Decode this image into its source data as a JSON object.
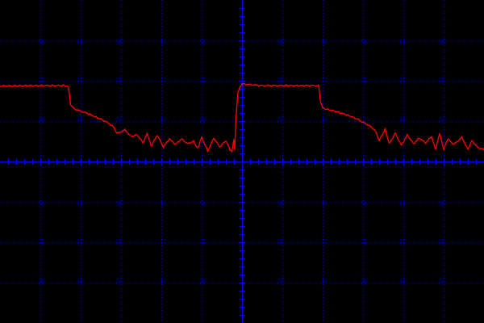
{
  "colors": {
    "background": "#000000",
    "grid": "#0000ff",
    "trace": "#ff0000"
  },
  "chart_data": {
    "type": "line",
    "title": "",
    "xlabel": "",
    "ylabel": "",
    "grid": true,
    "legend": "none",
    "xlim": [
      -6,
      6
    ],
    "ylim": [
      -4,
      4
    ],
    "x_divisions": 12,
    "y_divisions": 8,
    "x_minor_per_division": 5,
    "y_minor_per_division": 5,
    "series": [
      {
        "points": [
          [
            -6.0,
            1.87
          ],
          [
            -5.0,
            1.88
          ],
          [
            -4.4,
            1.88
          ],
          [
            -4.3,
            1.85
          ],
          [
            -4.25,
            1.4
          ],
          [
            -4.15,
            1.3
          ],
          [
            -3.8,
            1.18
          ],
          [
            -3.4,
            1.0
          ],
          [
            -3.2,
            0.88
          ],
          [
            -3.1,
            0.7
          ],
          [
            -2.9,
            0.78
          ],
          [
            -2.75,
            0.62
          ],
          [
            -2.6,
            0.66
          ],
          [
            -2.45,
            0.46
          ],
          [
            -2.35,
            0.7
          ],
          [
            -2.25,
            0.38
          ],
          [
            -2.1,
            0.66
          ],
          [
            -1.95,
            0.36
          ],
          [
            -1.8,
            0.56
          ],
          [
            -1.65,
            0.42
          ],
          [
            -1.5,
            0.56
          ],
          [
            -1.35,
            0.44
          ],
          [
            -1.2,
            0.5
          ],
          [
            -1.1,
            0.32
          ],
          [
            -1.0,
            0.6
          ],
          [
            -0.85,
            0.26
          ],
          [
            -0.7,
            0.58
          ],
          [
            -0.55,
            0.36
          ],
          [
            -0.4,
            0.52
          ],
          [
            -0.3,
            0.3
          ],
          [
            -0.25,
            0.26
          ],
          [
            -0.2,
            0.56
          ],
          [
            -0.18,
            0.3
          ],
          [
            -0.15,
            1.1
          ],
          [
            -0.1,
            1.72
          ],
          [
            -0.05,
            1.84
          ],
          [
            0.0,
            1.92
          ],
          [
            0.5,
            1.88
          ],
          [
            1.0,
            1.88
          ],
          [
            1.7,
            1.88
          ],
          [
            1.9,
            1.88
          ],
          [
            1.95,
            1.45
          ],
          [
            2.0,
            1.32
          ],
          [
            2.4,
            1.22
          ],
          [
            2.8,
            1.08
          ],
          [
            3.1,
            0.92
          ],
          [
            3.3,
            0.78
          ],
          [
            3.4,
            0.52
          ],
          [
            3.55,
            0.8
          ],
          [
            3.65,
            0.44
          ],
          [
            3.8,
            0.7
          ],
          [
            3.95,
            0.4
          ],
          [
            4.1,
            0.66
          ],
          [
            4.25,
            0.44
          ],
          [
            4.4,
            0.58
          ],
          [
            4.55,
            0.46
          ],
          [
            4.7,
            0.62
          ],
          [
            4.8,
            0.3
          ],
          [
            4.9,
            0.7
          ],
          [
            5.0,
            0.3
          ],
          [
            5.1,
            0.56
          ],
          [
            5.25,
            0.42
          ],
          [
            5.45,
            0.6
          ],
          [
            5.6,
            0.3
          ],
          [
            5.7,
            0.52
          ],
          [
            5.85,
            0.34
          ],
          [
            6.0,
            0.3
          ]
        ]
      }
    ]
  }
}
